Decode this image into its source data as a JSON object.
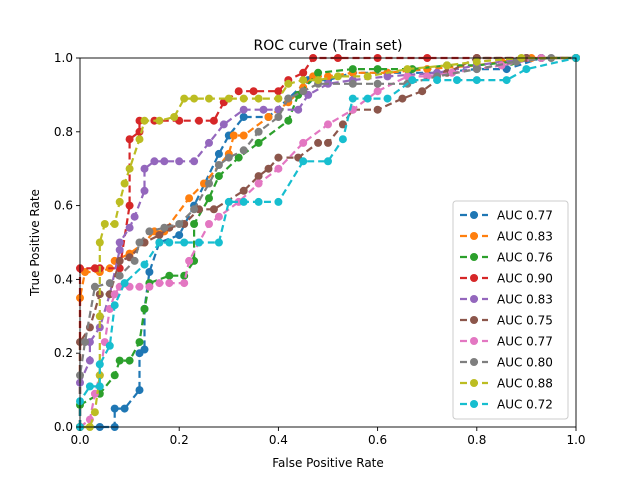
{
  "chart_data": {
    "type": "line",
    "title": "ROC curve (Train set)",
    "xlabel": "False Positive Rate",
    "ylabel": "True Positive Rate",
    "xlim": [
      0,
      1
    ],
    "ylim": [
      0,
      1
    ],
    "xticks": [
      "0.0",
      "0.2",
      "0.4",
      "0.6",
      "0.8",
      "1.0"
    ],
    "yticks": [
      "0.0",
      "0.2",
      "0.4",
      "0.6",
      "0.8",
      "1.0"
    ],
    "grid": false,
    "legend_position": "lower-right",
    "line_style": "dashed",
    "marker": "circle",
    "series": [
      {
        "name": "AUC 0.77",
        "color": "#1f77b4",
        "points": [
          [
            0,
            0
          ],
          [
            0.04,
            0
          ],
          [
            0.07,
            0
          ],
          [
            0.07,
            0.05
          ],
          [
            0.09,
            0.05
          ],
          [
            0.12,
            0.1
          ],
          [
            0.12,
            0.2
          ],
          [
            0.13,
            0.21
          ],
          [
            0.13,
            0.32
          ],
          [
            0.14,
            0.42
          ],
          [
            0.16,
            0.5
          ],
          [
            0.2,
            0.52
          ],
          [
            0.23,
            0.6
          ],
          [
            0.28,
            0.74
          ],
          [
            0.3,
            0.79
          ],
          [
            0.33,
            0.84
          ],
          [
            0.38,
            0.84
          ],
          [
            0.42,
            0.89
          ],
          [
            0.46,
            0.94
          ],
          [
            0.5,
            0.94
          ],
          [
            0.55,
            0.96
          ],
          [
            0.62,
            0.96
          ],
          [
            0.72,
            0.96
          ],
          [
            0.8,
            0.97
          ],
          [
            0.86,
            0.97
          ],
          [
            0.93,
            1.0
          ],
          [
            1.0,
            1.0
          ]
        ]
      },
      {
        "name": "AUC 0.83",
        "color": "#ff7f0e",
        "points": [
          [
            0,
            0
          ],
          [
            0,
            0.35
          ],
          [
            0.01,
            0.42
          ],
          [
            0.04,
            0.42
          ],
          [
            0.06,
            0.43
          ],
          [
            0.07,
            0.45
          ],
          [
            0.1,
            0.47
          ],
          [
            0.13,
            0.5
          ],
          [
            0.15,
            0.53
          ],
          [
            0.17,
            0.53
          ],
          [
            0.22,
            0.62
          ],
          [
            0.25,
            0.66
          ],
          [
            0.3,
            0.74
          ],
          [
            0.31,
            0.79
          ],
          [
            0.33,
            0.79
          ],
          [
            0.38,
            0.84
          ],
          [
            0.42,
            0.88
          ],
          [
            0.45,
            0.92
          ],
          [
            0.47,
            0.95
          ],
          [
            0.5,
            0.95
          ],
          [
            0.55,
            0.96
          ],
          [
            0.62,
            0.96
          ],
          [
            0.7,
            0.97
          ],
          [
            0.8,
            0.98
          ],
          [
            0.85,
            0.99
          ],
          [
            0.91,
            1.0
          ],
          [
            1.0,
            1.0
          ]
        ]
      },
      {
        "name": "AUC 0.76",
        "color": "#2ca02c",
        "points": [
          [
            0,
            0
          ],
          [
            0,
            0.06
          ],
          [
            0.04,
            0.09
          ],
          [
            0.07,
            0.14
          ],
          [
            0.08,
            0.18
          ],
          [
            0.1,
            0.18
          ],
          [
            0.12,
            0.23
          ],
          [
            0.13,
            0.32
          ],
          [
            0.14,
            0.39
          ],
          [
            0.18,
            0.41
          ],
          [
            0.21,
            0.41
          ],
          [
            0.23,
            0.45
          ],
          [
            0.23,
            0.55
          ],
          [
            0.26,
            0.62
          ],
          [
            0.28,
            0.68
          ],
          [
            0.32,
            0.73
          ],
          [
            0.36,
            0.77
          ],
          [
            0.42,
            0.83
          ],
          [
            0.44,
            0.9
          ],
          [
            0.48,
            0.96
          ],
          [
            0.55,
            0.97
          ],
          [
            0.6,
            0.97
          ],
          [
            0.67,
            0.97
          ],
          [
            0.74,
            0.98
          ],
          [
            0.8,
            0.98
          ],
          [
            0.87,
            0.99
          ],
          [
            0.93,
            1.0
          ],
          [
            1.0,
            1.0
          ]
        ]
      },
      {
        "name": "AUC 0.90",
        "color": "#d62728",
        "points": [
          [
            0,
            0
          ],
          [
            0,
            0.43
          ],
          [
            0.03,
            0.43
          ],
          [
            0.04,
            0.43
          ],
          [
            0.08,
            0.43
          ],
          [
            0.1,
            0.6
          ],
          [
            0.1,
            0.78
          ],
          [
            0.12,
            0.8
          ],
          [
            0.12,
            0.83
          ],
          [
            0.15,
            0.83
          ],
          [
            0.2,
            0.83
          ],
          [
            0.24,
            0.83
          ],
          [
            0.27,
            0.83
          ],
          [
            0.29,
            0.88
          ],
          [
            0.32,
            0.91
          ],
          [
            0.35,
            0.91
          ],
          [
            0.4,
            0.91
          ],
          [
            0.42,
            0.94
          ],
          [
            0.45,
            0.96
          ],
          [
            0.47,
            1.0
          ],
          [
            0.52,
            1.0
          ],
          [
            0.6,
            1.0
          ],
          [
            0.7,
            1.0
          ],
          [
            0.8,
            1.0
          ],
          [
            0.9,
            1.0
          ],
          [
            1.0,
            1.0
          ]
        ]
      },
      {
        "name": "AUC 0.83",
        "color": "#9467bd",
        "points": [
          [
            0,
            0
          ],
          [
            0,
            0.12
          ],
          [
            0.02,
            0.18
          ],
          [
            0.02,
            0.23
          ],
          [
            0.04,
            0.27
          ],
          [
            0.06,
            0.36
          ],
          [
            0.08,
            0.48
          ],
          [
            0.08,
            0.5
          ],
          [
            0.1,
            0.54
          ],
          [
            0.11,
            0.57
          ],
          [
            0.13,
            0.64
          ],
          [
            0.13,
            0.7
          ],
          [
            0.15,
            0.72
          ],
          [
            0.17,
            0.72
          ],
          [
            0.2,
            0.72
          ],
          [
            0.23,
            0.72
          ],
          [
            0.26,
            0.77
          ],
          [
            0.29,
            0.82
          ],
          [
            0.33,
            0.86
          ],
          [
            0.37,
            0.86
          ],
          [
            0.4,
            0.86
          ],
          [
            0.44,
            0.86
          ],
          [
            0.46,
            0.9
          ],
          [
            0.5,
            0.93
          ],
          [
            0.55,
            0.94
          ],
          [
            0.62,
            0.95
          ],
          [
            0.72,
            0.96
          ],
          [
            0.8,
            0.98
          ],
          [
            0.9,
            1.0
          ],
          [
            1.0,
            1.0
          ]
        ]
      },
      {
        "name": "AUC 0.75",
        "color": "#8c564b",
        "points": [
          [
            0,
            0
          ],
          [
            0,
            0.23
          ],
          [
            0.02,
            0.27
          ],
          [
            0.04,
            0.36
          ],
          [
            0.06,
            0.36
          ],
          [
            0.08,
            0.45
          ],
          [
            0.1,
            0.46
          ],
          [
            0.13,
            0.5
          ],
          [
            0.16,
            0.52
          ],
          [
            0.18,
            0.54
          ],
          [
            0.21,
            0.55
          ],
          [
            0.24,
            0.59
          ],
          [
            0.27,
            0.59
          ],
          [
            0.33,
            0.64
          ],
          [
            0.36,
            0.68
          ],
          [
            0.38,
            0.7
          ],
          [
            0.4,
            0.73
          ],
          [
            0.44,
            0.73
          ],
          [
            0.48,
            0.77
          ],
          [
            0.5,
            0.77
          ],
          [
            0.53,
            0.82
          ],
          [
            0.55,
            0.86
          ],
          [
            0.6,
            0.86
          ],
          [
            0.65,
            0.89
          ],
          [
            0.69,
            0.91
          ],
          [
            0.74,
            0.96
          ],
          [
            0.8,
            1.0
          ],
          [
            0.9,
            1.0
          ],
          [
            1.0,
            1.0
          ]
        ]
      },
      {
        "name": "AUC 0.77",
        "color": "#e377c2",
        "points": [
          [
            0,
            0
          ],
          [
            0.02,
            0.02
          ],
          [
            0.03,
            0.09
          ],
          [
            0.04,
            0.14
          ],
          [
            0.05,
            0.23
          ],
          [
            0.06,
            0.32
          ],
          [
            0.07,
            0.36
          ],
          [
            0.08,
            0.38
          ],
          [
            0.1,
            0.38
          ],
          [
            0.12,
            0.38
          ],
          [
            0.14,
            0.38
          ],
          [
            0.16,
            0.39
          ],
          [
            0.18,
            0.39
          ],
          [
            0.21,
            0.39
          ],
          [
            0.22,
            0.45
          ],
          [
            0.24,
            0.5
          ],
          [
            0.26,
            0.55
          ],
          [
            0.28,
            0.57
          ],
          [
            0.32,
            0.61
          ],
          [
            0.36,
            0.66
          ],
          [
            0.4,
            0.7
          ],
          [
            0.45,
            0.77
          ],
          [
            0.5,
            0.82
          ],
          [
            0.55,
            0.86
          ],
          [
            0.6,
            0.91
          ],
          [
            0.66,
            0.95
          ],
          [
            0.7,
            0.95
          ],
          [
            0.75,
            0.96
          ],
          [
            0.85,
            0.98
          ],
          [
            0.93,
            1.0
          ],
          [
            1.0,
            1.0
          ]
        ]
      },
      {
        "name": "AUC 0.80",
        "color": "#7f7f7f",
        "points": [
          [
            0,
            0
          ],
          [
            0,
            0.14
          ],
          [
            0.01,
            0.23
          ],
          [
            0.03,
            0.38
          ],
          [
            0.06,
            0.39
          ],
          [
            0.08,
            0.41
          ],
          [
            0.11,
            0.45
          ],
          [
            0.12,
            0.5
          ],
          [
            0.14,
            0.53
          ],
          [
            0.17,
            0.54
          ],
          [
            0.2,
            0.55
          ],
          [
            0.23,
            0.59
          ],
          [
            0.26,
            0.66
          ],
          [
            0.28,
            0.71
          ],
          [
            0.3,
            0.73
          ],
          [
            0.33,
            0.75
          ],
          [
            0.36,
            0.8
          ],
          [
            0.4,
            0.84
          ],
          [
            0.42,
            0.89
          ],
          [
            0.45,
            0.91
          ],
          [
            0.48,
            0.93
          ],
          [
            0.55,
            0.93
          ],
          [
            0.6,
            0.93
          ],
          [
            0.66,
            0.93
          ],
          [
            0.72,
            0.95
          ],
          [
            0.8,
            0.97
          ],
          [
            0.88,
            0.99
          ],
          [
            0.95,
            1.0
          ],
          [
            1.0,
            1.0
          ]
        ]
      },
      {
        "name": "AUC 0.88",
        "color": "#bcbd22",
        "points": [
          [
            0,
            0
          ],
          [
            0.02,
            0
          ],
          [
            0.03,
            0.04
          ],
          [
            0.04,
            0.14
          ],
          [
            0.04,
            0.3
          ],
          [
            0.04,
            0.5
          ],
          [
            0.05,
            0.55
          ],
          [
            0.07,
            0.55
          ],
          [
            0.08,
            0.61
          ],
          [
            0.09,
            0.66
          ],
          [
            0.1,
            0.7
          ],
          [
            0.12,
            0.78
          ],
          [
            0.13,
            0.83
          ],
          [
            0.16,
            0.83
          ],
          [
            0.19,
            0.84
          ],
          [
            0.21,
            0.89
          ],
          [
            0.23,
            0.89
          ],
          [
            0.26,
            0.89
          ],
          [
            0.3,
            0.89
          ],
          [
            0.33,
            0.89
          ],
          [
            0.36,
            0.89
          ],
          [
            0.4,
            0.89
          ],
          [
            0.42,
            0.93
          ],
          [
            0.45,
            0.94
          ],
          [
            0.48,
            0.94
          ],
          [
            0.52,
            0.95
          ],
          [
            0.58,
            0.95
          ],
          [
            0.66,
            0.97
          ],
          [
            0.74,
            0.98
          ],
          [
            0.8,
            0.99
          ],
          [
            0.89,
            1.0
          ],
          [
            1.0,
            1.0
          ]
        ]
      },
      {
        "name": "AUC 0.72",
        "color": "#17becf",
        "points": [
          [
            0,
            0
          ],
          [
            0,
            0.07
          ],
          [
            0.02,
            0.11
          ],
          [
            0.04,
            0.11
          ],
          [
            0.04,
            0.17
          ],
          [
            0.06,
            0.22
          ],
          [
            0.07,
            0.33
          ],
          [
            0.09,
            0.39
          ],
          [
            0.13,
            0.44
          ],
          [
            0.16,
            0.5
          ],
          [
            0.18,
            0.5
          ],
          [
            0.21,
            0.5
          ],
          [
            0.24,
            0.5
          ],
          [
            0.28,
            0.5
          ],
          [
            0.3,
            0.61
          ],
          [
            0.33,
            0.61
          ],
          [
            0.36,
            0.61
          ],
          [
            0.4,
            0.61
          ],
          [
            0.45,
            0.72
          ],
          [
            0.5,
            0.72
          ],
          [
            0.53,
            0.78
          ],
          [
            0.55,
            0.89
          ],
          [
            0.58,
            0.89
          ],
          [
            0.62,
            0.89
          ],
          [
            0.67,
            0.94
          ],
          [
            0.72,
            0.94
          ],
          [
            0.76,
            0.94
          ],
          [
            0.8,
            0.94
          ],
          [
            0.86,
            0.94
          ],
          [
            0.9,
            0.97
          ],
          [
            1.0,
            1.0
          ]
        ]
      }
    ]
  }
}
